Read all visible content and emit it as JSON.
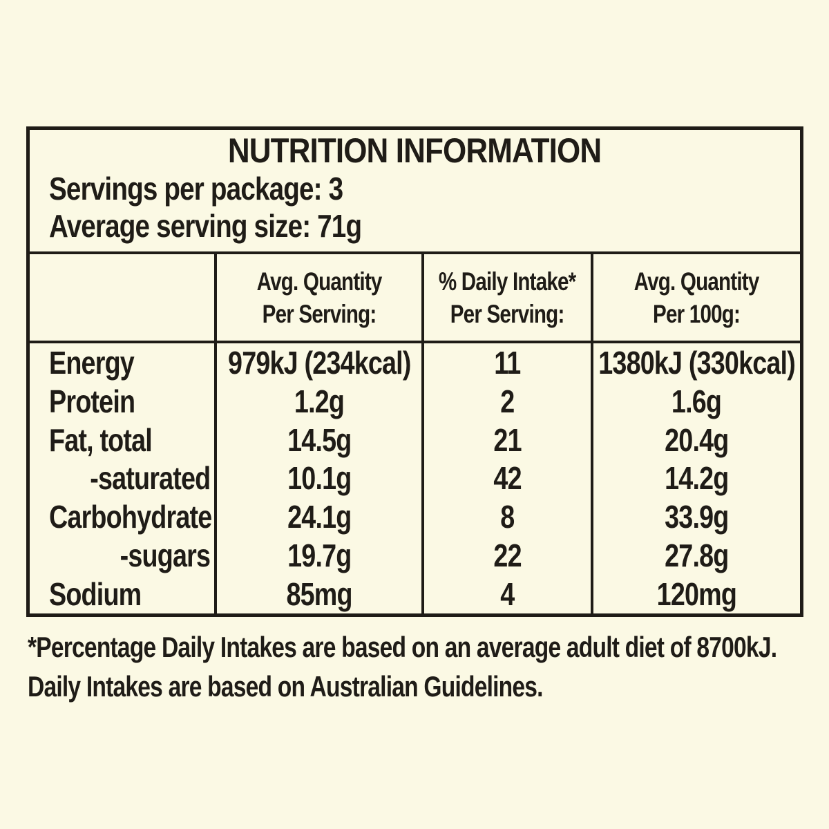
{
  "colors": {
    "background": "#FBF9E4",
    "ink": "#1F1C17"
  },
  "panel": {
    "title": "NUTRITION INFORMATION",
    "servings": "Servings per package: 3",
    "serving_size": "Average serving size: 71g"
  },
  "table": {
    "headers": {
      "per_serving": "Avg. Quantity\nPer Serving:",
      "daily_intake": "% Daily Intake*\nPer Serving:",
      "per_100g": "Avg. Quantity\nPer 100g:"
    },
    "rows": [
      {
        "label": "Energy",
        "per_serving": "979kJ (234kcal)",
        "daily_intake": "11",
        "per_100g": "1380kJ (330kcal)"
      },
      {
        "label": "Protein",
        "per_serving": "1.2g",
        "daily_intake": "2",
        "per_100g": "1.6g"
      },
      {
        "label": "Fat, total",
        "per_serving": "14.5g",
        "daily_intake": "21",
        "per_100g": "20.4g"
      },
      {
        "label": "-saturated",
        "per_serving": "10.1g",
        "daily_intake": "42",
        "per_100g": "14.2g"
      },
      {
        "label": "Carbohydrate",
        "per_serving": "24.1g",
        "daily_intake": "8",
        "per_100g": "33.9g"
      },
      {
        "label": "-sugars",
        "per_serving": "19.7g",
        "daily_intake": "22",
        "per_100g": "27.8g"
      },
      {
        "label": "Sodium",
        "per_serving": "85mg",
        "daily_intake": "4",
        "per_100g": "120mg"
      }
    ]
  },
  "footnote": {
    "line1": "*Percentage Daily Intakes are based on an average adult diet of 8700kJ.",
    "line2": "Daily Intakes are based on Australian Guidelines."
  }
}
